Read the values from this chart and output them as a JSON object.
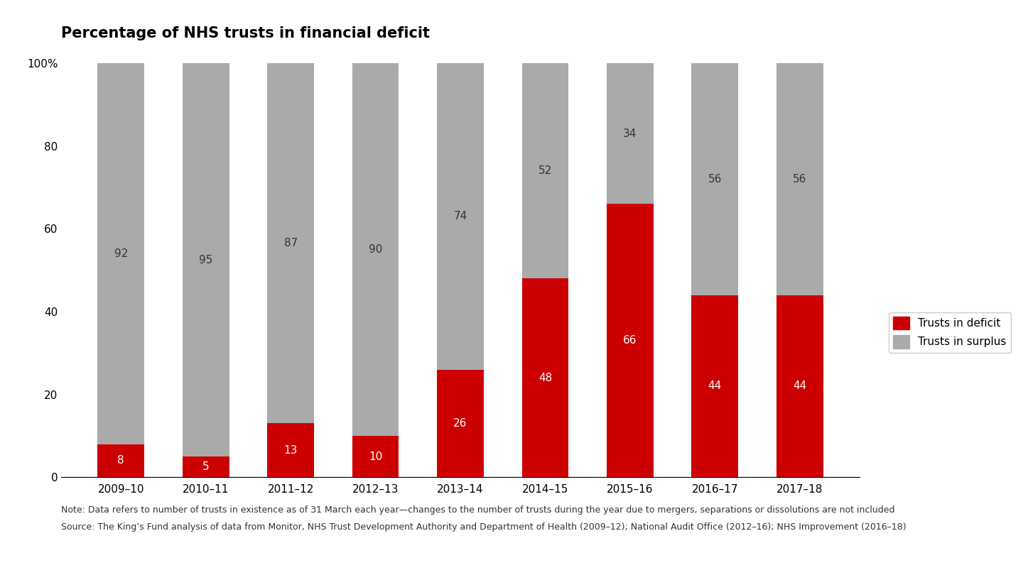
{
  "years": [
    "2009–10",
    "2010–11",
    "2011–12",
    "2012–13",
    "2013–14",
    "2014–15",
    "2015–16",
    "2016–17",
    "2017–18"
  ],
  "deficit": [
    8,
    5,
    13,
    10,
    26,
    48,
    66,
    44,
    44
  ],
  "surplus": [
    92,
    95,
    87,
    90,
    74,
    52,
    34,
    56,
    56
  ],
  "deficit_color": "#cc0000",
  "surplus_color": "#aaaaaa",
  "title": "Percentage of NHS trusts in financial deficit",
  "ylim": [
    0,
    100
  ],
  "yticks": [
    0,
    20,
    40,
    60,
    80,
    100
  ],
  "ytick_labels": [
    "0",
    "20",
    "40",
    "60",
    "80",
    "100%"
  ],
  "legend_deficit": "Trusts in deficit",
  "legend_surplus": "Trusts in surplus",
  "note_line1": "Note: Data refers to number of trusts in existence as of 31 March each year—changes to the number of trusts during the year due to mergers, separations or dissolutions are not included",
  "note_line2": "Source: The King’s Fund analysis of data from Monitor, NHS Trust Development Authority and Department of Health (2009–12); National Audit Office (2012–16); NHS Improvement (2016–18)",
  "title_fontsize": 15,
  "label_fontsize": 11,
  "tick_fontsize": 11,
  "note_fontsize": 9,
  "bar_width": 0.55
}
